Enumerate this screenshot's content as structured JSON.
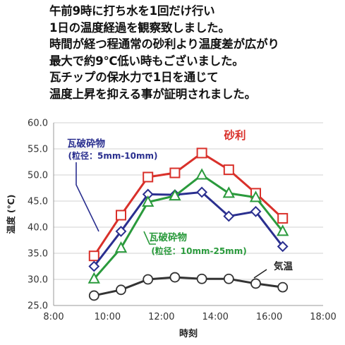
{
  "intro": {
    "lines": [
      "午前9時に打ち水を1回だけ行い",
      "1日の温度経過を観察致しました。",
      "時間が経つ程通常の砂利より温度差が広がり",
      "最大で約9℃低い時もございました。",
      "瓦チップの保水力で1日を通じて",
      "温度上昇を抑える事が証明されました。"
    ]
  },
  "chart_data": {
    "type": "line",
    "xlabel": "時刻",
    "ylabel": "温度 (℃)",
    "xlim": [
      "8:00",
      "18:00"
    ],
    "ylim": [
      25.0,
      60.0
    ],
    "x_ticks": [
      "8:00",
      "10:00",
      "12:00",
      "14:00",
      "16:00",
      "18:00"
    ],
    "y_ticks": [
      "25.0",
      "30.0",
      "35.0",
      "40.0",
      "45.0",
      "50.0",
      "55.0",
      "60.0"
    ],
    "grid": "horizontal",
    "x": [
      "9:30",
      "10:30",
      "11:30",
      "12:30",
      "13:30",
      "14:30",
      "15:30",
      "16:30"
    ],
    "series": [
      {
        "name": "砂利",
        "label_lines": [
          "砂利"
        ],
        "color": "#d9302a",
        "marker": "square",
        "values": [
          34.5,
          42.3,
          49.6,
          50.4,
          54.2,
          51.0,
          46.5,
          41.7
        ]
      },
      {
        "name": "瓦破砕物 (粒径：5mm-10mm)",
        "label_lines": [
          "瓦破砕物",
          "(粒径：5mm-10mm)"
        ],
        "color": "#2a2f8f",
        "marker": "diamond",
        "values": [
          32.5,
          39.2,
          46.3,
          46.2,
          46.7,
          42.1,
          43.0,
          36.3
        ]
      },
      {
        "name": "瓦破砕物 (粒径：10mm-25mm)",
        "label_lines": [
          "瓦破砕物",
          "(粒径：10mm-25mm)"
        ],
        "color": "#2a9a3c",
        "marker": "triangle",
        "values": [
          30.1,
          36.0,
          44.8,
          46.0,
          50.0,
          46.5,
          45.7,
          39.2
        ]
      },
      {
        "name": "気温",
        "label_lines": [
          "気温"
        ],
        "color": "#333333",
        "marker": "circle",
        "values": [
          26.9,
          28.0,
          30.0,
          30.4,
          30.1,
          30.1,
          29.2,
          28.5
        ]
      }
    ]
  }
}
